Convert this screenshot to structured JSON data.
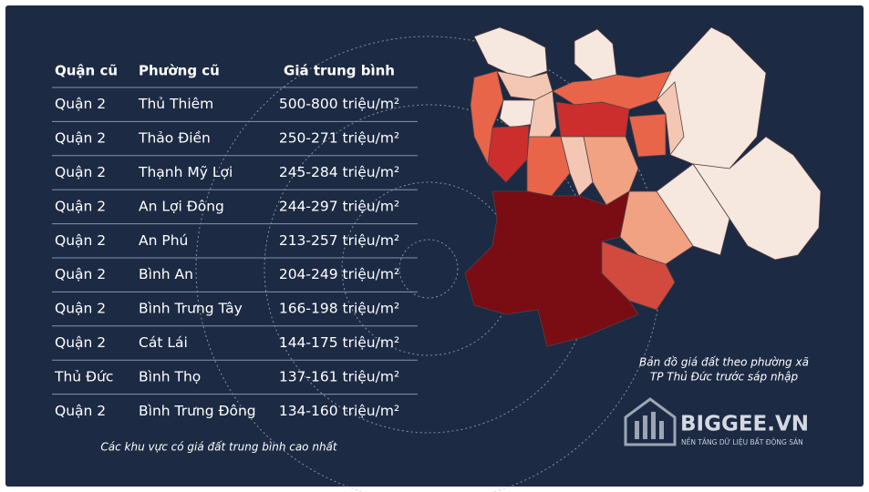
{
  "table": {
    "headers": [
      "Quận cũ",
      "Phường cũ",
      "Giá trung bình"
    ],
    "rows": [
      [
        "Quận 2",
        "Thủ Thiêm",
        "500-800 triệu/m²"
      ],
      [
        "Quận 2",
        "Thảo Điền",
        "250-271 triệu/m²"
      ],
      [
        "Quận 2",
        "Thạnh Mỹ Lợi",
        "245-284 triệu/m²"
      ],
      [
        "Quận 2",
        "An Lợi Đông",
        "244-297 triệu/m²"
      ],
      [
        "Quận 2",
        "An Phú",
        "213-257 triệu/m²"
      ],
      [
        "Quận 2",
        "Bình An",
        "204-249 triệu/m²"
      ],
      [
        "Quận 2",
        "Bình Trưng Tây",
        "166-198 triệu/m²"
      ],
      [
        "Quận 2",
        "Cát Lái",
        "144-175 triệu/m²"
      ],
      [
        "Thủ Đức",
        "Bình Thọ",
        "137-161 triệu/m²"
      ],
      [
        "Quận 2",
        "Bình Trưng Đông",
        "134-160 triệu/m²"
      ]
    ]
  },
  "table_caption": "Các khu vực có giá đất trung bình cao nhất",
  "map_caption": [
    "Bản đồ giá đất theo phường xã",
    "TP Thủ Đức trước sáp nhập"
  ],
  "brand": {
    "name": "BIGGEE.VN",
    "tagline": "NỀN TẢNG DỮ LIỆU BẤT ĐỘNG SẢN"
  }
}
